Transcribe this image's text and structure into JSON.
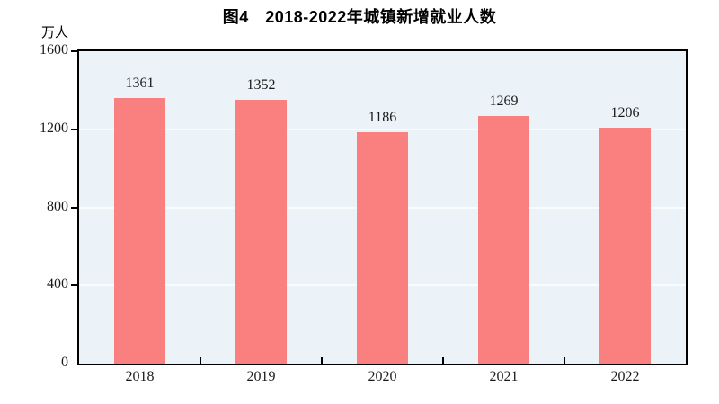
{
  "title": "图4　2018-2022年城镇新增就业人数",
  "y_axis_unit": "万人",
  "colors": {
    "bar": "#FA7F7F",
    "plot_background": "#EBF3F8",
    "gridline": "#F9FCFD",
    "axis": "#000000",
    "text": "#1a1a1a"
  },
  "chart_data": {
    "type": "bar",
    "title": "图4　2018-2022年城镇新增就业人数",
    "categories": [
      "2018",
      "2019",
      "2020",
      "2021",
      "2022"
    ],
    "values": [
      1361,
      1352,
      1186,
      1269,
      1206
    ],
    "bar_labels": [
      1361,
      1352,
      1186,
      1269,
      1206
    ],
    "xlabel": "",
    "ylabel": "万人",
    "ylim": [
      0,
      1600
    ],
    "yticks": [
      0,
      400,
      800,
      1200,
      1600
    ],
    "grid": true,
    "legend": "none"
  }
}
